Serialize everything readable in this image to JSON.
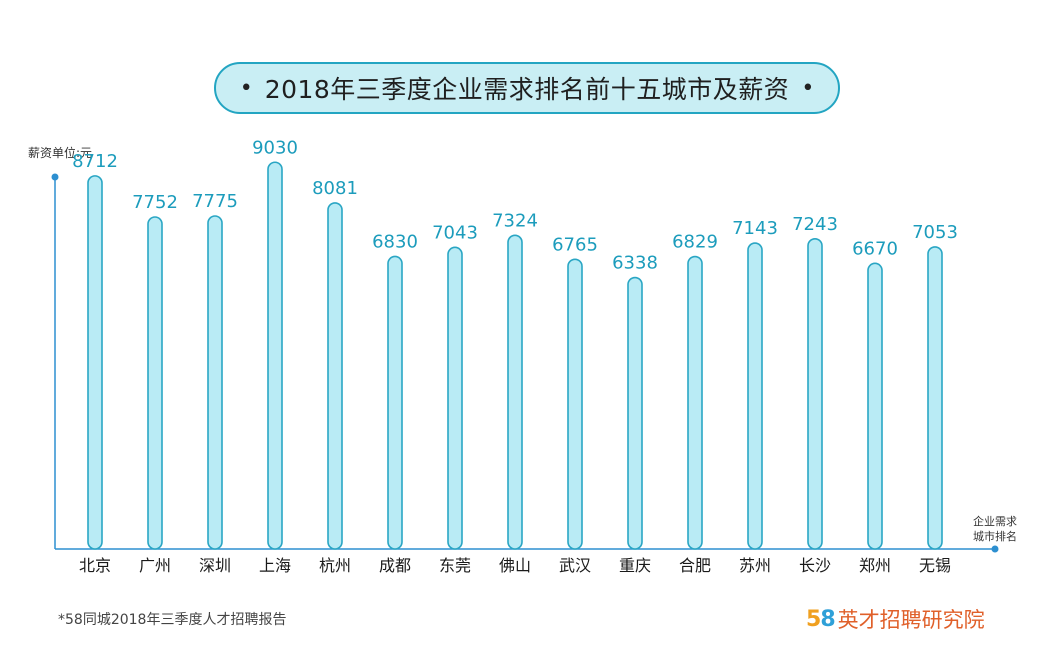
{
  "title": "2018年三季度企业需求排名前十五城市及薪资",
  "unit_label": "薪资单位:元",
  "x_axis_note_line1": "企业需求",
  "x_axis_note_line2": "城市排名",
  "footnote": "*58同城2018年三季度人才招聘报告",
  "brand": {
    "num5": "5",
    "num8": "8",
    "text": "英才招聘研究院"
  },
  "colors": {
    "bar_fill": "#b9ebf5",
    "bar_stroke": "#2aa6c4",
    "axis": "#2d8fd0",
    "value_text": "#1c9cbc"
  },
  "chart_data": {
    "type": "bar",
    "title": "2018年三季度企业需求排名前十五城市及薪资",
    "ylabel": "薪资单位:元",
    "xlabel": "企业需求城市排名",
    "categories": [
      "北京",
      "广州",
      "深圳",
      "上海",
      "杭州",
      "成都",
      "东莞",
      "佛山",
      "武汉",
      "重庆",
      "合肥",
      "苏州",
      "长沙",
      "郑州",
      "无锡"
    ],
    "values": [
      8712,
      7752,
      7775,
      9030,
      8081,
      6830,
      7043,
      7324,
      6765,
      6338,
      6829,
      7143,
      7243,
      6670,
      7053
    ],
    "ylim": [
      0,
      9900
    ],
    "grid": false,
    "legend": "none"
  }
}
